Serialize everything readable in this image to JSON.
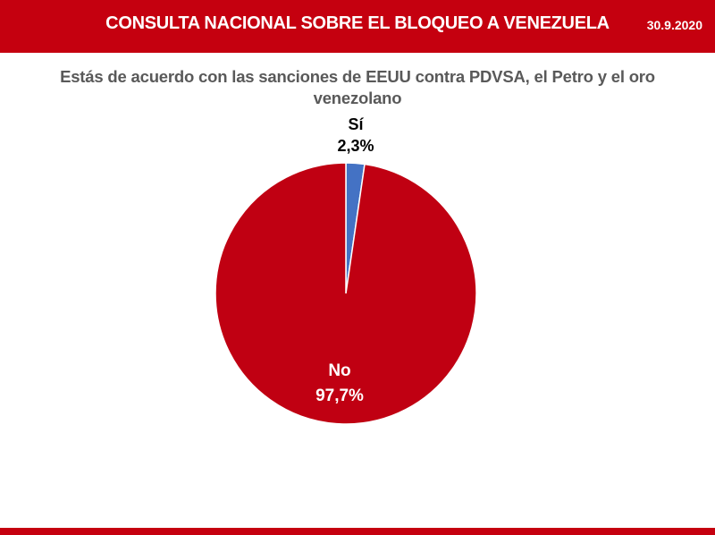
{
  "header": {
    "title": "CONSULTA NACIONAL SOBRE EL BLOQUEO A VENEZUELA",
    "date": "30.9.2020",
    "color": "#c5000f"
  },
  "chart_data": {
    "type": "pie",
    "title": "Estás de acuerdo con las sanciones de EEUU contra PDVSA, el Petro y el oro venezolano",
    "slices": [
      {
        "label": "Sí",
        "value": 2.3,
        "value_label": "2,3%",
        "color": "#4472c4"
      },
      {
        "label": "No",
        "value": 97.7,
        "value_label": "97,7%",
        "color": "#c00012"
      }
    ]
  }
}
